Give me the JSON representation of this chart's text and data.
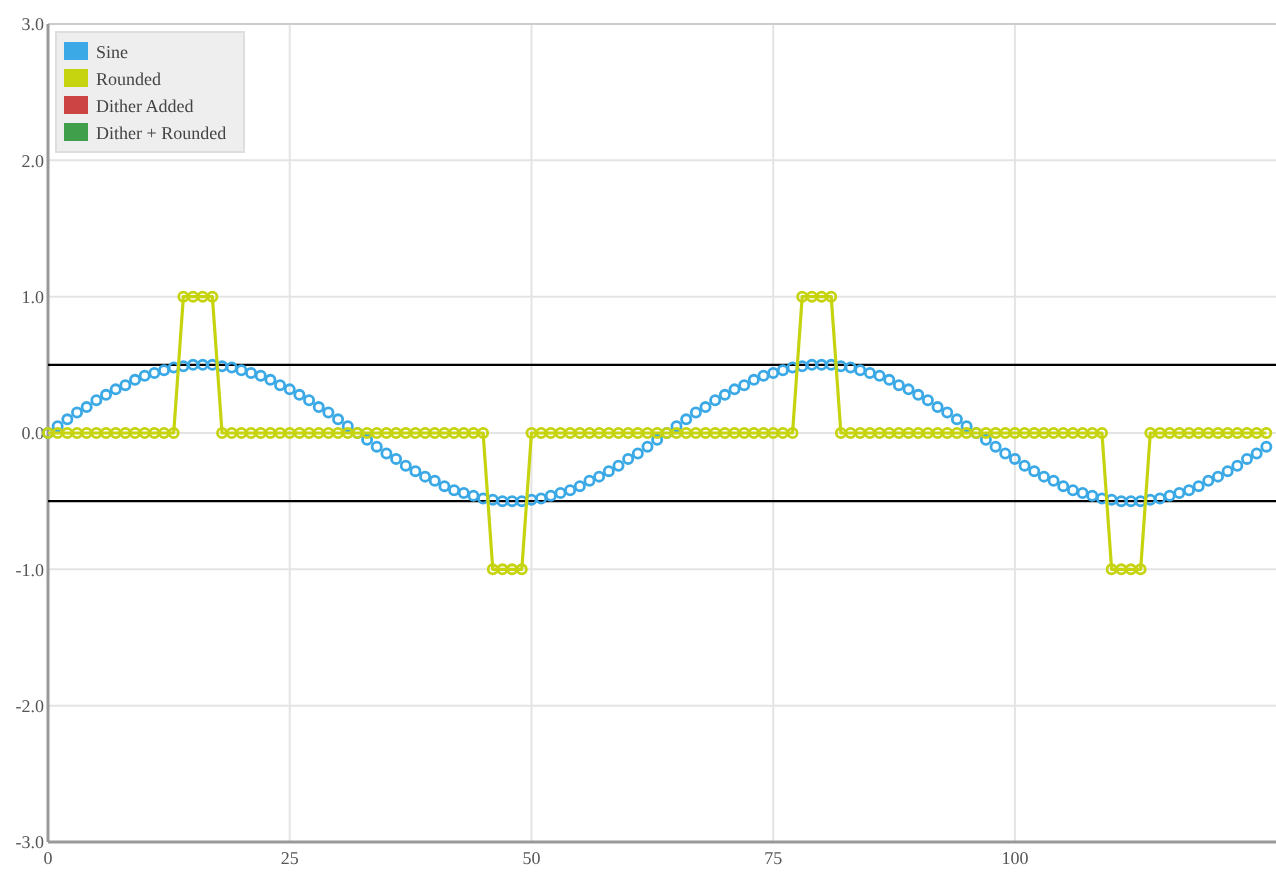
{
  "chart_data": {
    "type": "line",
    "marker": "circle",
    "line_style": "solid",
    "grid": true,
    "legend": "top left",
    "x": [
      0,
      1,
      2,
      3,
      4,
      5,
      6,
      7,
      8,
      9,
      10,
      11,
      12,
      13,
      14,
      15,
      16,
      17,
      18,
      19,
      20,
      21,
      22,
      23,
      24,
      25,
      26,
      27,
      28,
      29,
      30,
      31,
      32,
      33,
      34,
      35,
      36,
      37,
      38,
      39,
      40,
      41,
      42,
      43,
      44,
      45,
      46,
      47,
      48,
      49,
      50,
      51,
      52,
      53,
      54,
      55,
      56,
      57,
      58,
      59,
      60,
      61,
      62,
      63,
      64,
      65,
      66,
      67,
      68,
      69,
      70,
      71,
      72,
      73,
      74,
      75,
      76,
      77,
      78,
      79,
      80,
      81,
      82,
      83,
      84,
      85,
      86,
      87,
      88,
      89,
      90,
      91,
      92,
      93,
      94,
      95,
      96,
      97,
      98,
      99,
      100,
      101,
      102,
      103,
      104,
      105,
      106,
      107,
      108,
      109,
      110,
      111,
      112,
      113,
      114,
      115,
      116,
      117,
      118,
      119,
      120,
      121,
      122,
      123,
      124,
      125,
      126
    ],
    "xlim": [
      0,
      127
    ],
    "xticks": [
      0,
      25,
      50,
      75,
      100
    ],
    "ylim": [
      -3,
      3
    ],
    "yticks": [
      {
        "value": -3,
        "label": "-3.0"
      },
      {
        "value": -2,
        "label": "-2.0"
      },
      {
        "value": -1,
        "label": "-1.0"
      },
      {
        "value": 0,
        "label": "0.0"
      },
      {
        "value": 1,
        "label": "1.0"
      },
      {
        "value": 2,
        "label": "2.0"
      },
      {
        "value": 3,
        "label": "3.0"
      }
    ],
    "ref_lines": [
      {
        "axis": "y",
        "value": 0.5,
        "color": "#000000"
      },
      {
        "axis": "y",
        "value": -0.5,
        "color": "#000000"
      }
    ],
    "series": [
      {
        "name": "Sine",
        "type": "scatter",
        "color": "#3ba9e6",
        "values": [
          0,
          0.05,
          0.1,
          0.15,
          0.19,
          0.24,
          0.28,
          0.32,
          0.35,
          0.39,
          0.42,
          0.44,
          0.46,
          0.48,
          0.49,
          0.5,
          0.5,
          0.5,
          0.49,
          0.48,
          0.46,
          0.44,
          0.42,
          0.39,
          0.35,
          0.32,
          0.28,
          0.24,
          0.19,
          0.15,
          0.1,
          0.05,
          0,
          -0.05,
          -0.1,
          -0.15,
          -0.19,
          -0.24,
          -0.28,
          -0.32,
          -0.35,
          -0.39,
          -0.42,
          -0.44,
          -0.46,
          -0.48,
          -0.49,
          -0.5,
          -0.5,
          -0.5,
          -0.49,
          -0.48,
          -0.46,
          -0.44,
          -0.42,
          -0.39,
          -0.35,
          -0.32,
          -0.28,
          -0.24,
          -0.19,
          -0.15,
          -0.1,
          -0.05,
          0,
          0.05,
          0.1,
          0.15,
          0.19,
          0.24,
          0.28,
          0.32,
          0.35,
          0.39,
          0.42,
          0.44,
          0.46,
          0.48,
          0.49,
          0.5,
          0.5,
          0.5,
          0.49,
          0.48,
          0.46,
          0.44,
          0.42,
          0.39,
          0.35,
          0.32,
          0.28,
          0.24,
          0.19,
          0.15,
          0.1,
          0.05,
          0,
          -0.05,
          -0.1,
          -0.15,
          -0.19,
          -0.24,
          -0.28,
          -0.32,
          -0.35,
          -0.39,
          -0.42,
          -0.44,
          -0.46,
          -0.48,
          -0.49,
          -0.5,
          -0.5,
          -0.5,
          -0.49,
          -0.48,
          -0.46,
          -0.44,
          -0.42,
          -0.39,
          -0.35,
          -0.32,
          -0.28,
          -0.24,
          -0.19,
          -0.15,
          -0.1
        ]
      },
      {
        "name": "Rounded",
        "color": "#c6d30f",
        "values": [
          0,
          0,
          0,
          0,
          0,
          0,
          0,
          0,
          0,
          0,
          0,
          0,
          0,
          0,
          1,
          1,
          1,
          1,
          0,
          0,
          0,
          0,
          0,
          0,
          0,
          0,
          0,
          0,
          0,
          0,
          0,
          0,
          0,
          0,
          0,
          0,
          0,
          0,
          0,
          0,
          0,
          0,
          0,
          0,
          0,
          0,
          -1,
          -1,
          -1,
          -1,
          0,
          0,
          0,
          0,
          0,
          0,
          0,
          0,
          0,
          0,
          0,
          0,
          0,
          0,
          0,
          0,
          0,
          0,
          0,
          0,
          0,
          0,
          0,
          0,
          0,
          0,
          0,
          0,
          1,
          1,
          1,
          1,
          0,
          0,
          0,
          0,
          0,
          0,
          0,
          0,
          0,
          0,
          0,
          0,
          0,
          0,
          0,
          0,
          0,
          0,
          0,
          0,
          0,
          0,
          0,
          0,
          0,
          0,
          0,
          0,
          -1,
          -1,
          -1,
          -1,
          0,
          0,
          0,
          0,
          0,
          0,
          0,
          0,
          0,
          0,
          0,
          0,
          0
        ]
      },
      {
        "name": "Dither Added",
        "color": "#cc4444",
        "values": [
          null,
          null,
          null,
          null,
          null,
          null,
          null,
          null,
          null,
          null,
          null,
          null,
          null,
          null,
          null,
          null,
          null,
          null,
          null,
          null,
          null,
          null,
          null,
          null,
          null,
          null,
          null,
          null,
          null,
          null,
          null,
          null,
          null,
          null,
          null,
          null,
          null,
          null,
          null,
          null,
          null,
          null,
          null,
          null,
          null,
          null,
          null,
          null,
          null,
          null,
          null,
          null,
          null,
          null,
          null,
          null,
          null,
          null,
          null,
          null,
          null,
          null,
          null,
          null,
          null,
          null,
          null,
          null,
          null,
          null,
          null,
          null,
          null,
          null,
          null,
          null,
          null,
          null,
          null,
          null,
          null,
          null,
          null,
          null,
          null,
          null,
          null,
          null,
          null,
          null,
          null,
          null,
          null,
          null,
          null,
          null,
          null,
          null,
          null,
          null,
          null,
          null,
          null,
          null,
          null,
          null,
          null,
          null,
          null,
          null,
          null,
          null,
          null,
          null,
          null,
          null,
          null,
          null,
          null,
          null,
          null,
          null,
          null,
          null,
          null,
          null,
          null
        ]
      },
      {
        "name": "Dither + Rounded",
        "color": "#3f9f4a",
        "values": [
          null,
          null,
          null,
          null,
          null,
          null,
          null,
          null,
          null,
          null,
          null,
          null,
          null,
          null,
          null,
          null,
          null,
          null,
          null,
          null,
          null,
          null,
          null,
          null,
          null,
          null,
          null,
          null,
          null,
          null,
          null,
          null,
          null,
          null,
          null,
          null,
          null,
          null,
          null,
          null,
          null,
          null,
          null,
          null,
          null,
          null,
          null,
          null,
          null,
          null,
          null,
          null,
          null,
          null,
          null,
          null,
          null,
          null,
          null,
          null,
          null,
          null,
          null,
          null,
          null,
          null,
          null,
          null,
          null,
          null,
          null,
          null,
          null,
          null,
          null,
          null,
          null,
          null,
          null,
          null,
          null,
          null,
          null,
          null,
          null,
          null,
          null,
          null,
          null,
          null,
          null,
          null,
          null,
          null,
          null,
          null,
          null,
          null,
          null,
          null,
          null,
          null,
          null,
          null,
          null,
          null,
          null,
          null,
          null,
          null,
          null,
          null,
          null,
          null,
          null,
          null,
          null,
          null,
          null,
          null,
          null,
          null,
          null,
          null,
          null,
          null,
          null
        ]
      }
    ]
  }
}
